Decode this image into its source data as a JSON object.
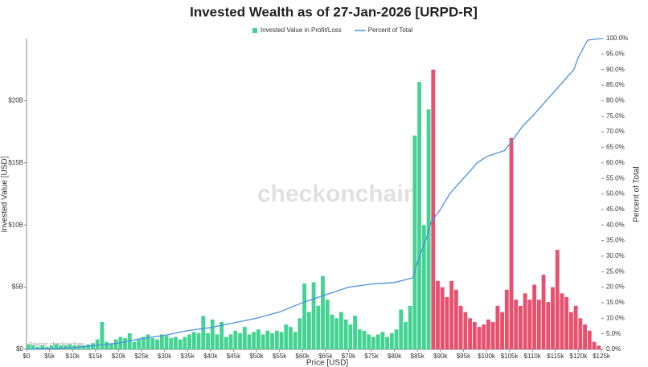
{
  "chart_data": {
    "type": "bar",
    "title": "Invested Wealth as of 27-Jan-2026 [URPD-R]",
    "x_label": "Price [USD]",
    "y_label": "Invested Value [USD]",
    "y2_label": "Percent of Total",
    "watermark": "checkonchain",
    "source": "Source: checkonchain",
    "xlim": [
      0,
      125000
    ],
    "xticks": [
      {
        "value": 0,
        "label": "$0"
      },
      {
        "value": 5000,
        "label": "$5k"
      },
      {
        "value": 10000,
        "label": "$10k"
      },
      {
        "value": 15000,
        "label": "$15k"
      },
      {
        "value": 20000,
        "label": "$20k"
      },
      {
        "value": 25000,
        "label": "$25k"
      },
      {
        "value": 30000,
        "label": "$30k"
      },
      {
        "value": 35000,
        "label": "$35k"
      },
      {
        "value": 40000,
        "label": "$40k"
      },
      {
        "value": 45000,
        "label": "$45k"
      },
      {
        "value": 50000,
        "label": "$50k"
      },
      {
        "value": 55000,
        "label": "$55k"
      },
      {
        "value": 60000,
        "label": "$60k"
      },
      {
        "value": 65000,
        "label": "$65k"
      },
      {
        "value": 70000,
        "label": "$70k"
      },
      {
        "value": 75000,
        "label": "$75k"
      },
      {
        "value": 80000,
        "label": "$80k"
      },
      {
        "value": 85000,
        "label": "$85k"
      },
      {
        "value": 90000,
        "label": "$90k"
      },
      {
        "value": 95000,
        "label": "$95k"
      },
      {
        "value": 100000,
        "label": "$100k"
      },
      {
        "value": 105000,
        "label": "$105k"
      },
      {
        "value": 110000,
        "label": "$110k"
      },
      {
        "value": 115000,
        "label": "$115k"
      },
      {
        "value": 120000,
        "label": "$120k"
      },
      {
        "value": 125000,
        "label": "$125k"
      }
    ],
    "ylim": [
      0,
      25
    ],
    "yticks": [
      {
        "value": 0,
        "label": "$0"
      },
      {
        "value": 5,
        "label": "$5B"
      },
      {
        "value": 10,
        "label": "$10B"
      },
      {
        "value": 15,
        "label": "$15B"
      },
      {
        "value": 20,
        "label": "$20B"
      }
    ],
    "y2lim": [
      0,
      100
    ],
    "y2ticks": [
      {
        "value": 0,
        "label": "0.0%"
      },
      {
        "value": 5,
        "label": "5.0%"
      },
      {
        "value": 10,
        "label": "10.0%"
      },
      {
        "value": 15,
        "label": "15.0%"
      },
      {
        "value": 20,
        "label": "20.0%"
      },
      {
        "value": 25,
        "label": "25.0%"
      },
      {
        "value": 30,
        "label": "30.0%"
      },
      {
        "value": 35,
        "label": "35.0%"
      },
      {
        "value": 40,
        "label": "40.0%"
      },
      {
        "value": 45,
        "label": "45.0%"
      },
      {
        "value": 50,
        "label": "50.0%"
      },
      {
        "value": 55,
        "label": "55.0%"
      },
      {
        "value": 60,
        "label": "60.0%"
      },
      {
        "value": 65,
        "label": "65.0%"
      },
      {
        "value": 70,
        "label": "70.0%"
      },
      {
        "value": 75,
        "label": "75.0%"
      },
      {
        "value": 80,
        "label": "80.0%"
      },
      {
        "value": 85,
        "label": "85.0%"
      },
      {
        "value": 90,
        "label": "90.0%"
      },
      {
        "value": 95,
        "label": "95.0%"
      },
      {
        "value": 100,
        "label": "100.0%"
      }
    ],
    "series": [
      {
        "name": "Invested Value in Profit/Loss",
        "type": "bar",
        "color": "#45d393",
        "x": [
          0,
          1000,
          2000,
          3000,
          4000,
          5000,
          6000,
          7000,
          8000,
          9000,
          10000,
          11000,
          12000,
          13000,
          14000,
          15000,
          16000,
          17000,
          18000,
          19000,
          20000,
          21000,
          22000,
          23000,
          24000,
          25000,
          26000,
          27000,
          28000,
          29000,
          30000,
          31000,
          32000,
          33000,
          34000,
          35000,
          36000,
          37000,
          38000,
          39000,
          40000,
          41000,
          42000,
          43000,
          44000,
          45000,
          46000,
          47000,
          48000,
          49000,
          50000,
          51000,
          52000,
          53000,
          54000,
          55000,
          56000,
          57000,
          58000,
          59000,
          60000,
          61000,
          62000,
          63000,
          64000,
          65000,
          66000,
          67000,
          68000,
          69000,
          70000,
          71000,
          72000,
          73000,
          74000,
          75000,
          76000,
          77000,
          78000,
          79000,
          80000,
          81000,
          82000,
          83000,
          84000,
          85000,
          86000,
          87000
        ],
        "values": [
          0.4,
          0.3,
          0.2,
          0.3,
          0.2,
          0.3,
          0.4,
          0.3,
          0.3,
          0.4,
          0.3,
          0.3,
          0.3,
          0.4,
          0.5,
          0.8,
          2.2,
          0.6,
          0.5,
          0.8,
          1.0,
          0.9,
          1.3,
          0.6,
          0.8,
          1.0,
          1.2,
          0.9,
          0.8,
          1.2,
          1.1,
          0.9,
          1.0,
          0.8,
          1.0,
          1.2,
          1.4,
          1.3,
          2.7,
          1.3,
          2.4,
          1.2,
          2.2,
          1.0,
          1.2,
          1.5,
          1.3,
          1.8,
          1.2,
          1.4,
          1.6,
          1.2,
          1.5,
          1.3,
          1.5,
          1.4,
          2.0,
          1.8,
          1.4,
          2.5,
          5.3,
          3.0,
          5.4,
          3.5,
          5.9,
          4.0,
          2.8,
          2.5,
          3.0,
          2.4,
          2.0,
          2.7,
          1.6,
          1.5,
          1.2,
          1.0,
          1.2,
          1.4,
          1.0,
          1.3,
          1.6,
          3.2,
          2.2,
          3.5,
          17.2,
          21.5,
          10.0,
          19.3
        ]
      },
      {
        "type": "bar",
        "color": "#e8506e",
        "x": [
          88000,
          89000,
          90000,
          91000,
          92000,
          93000,
          94000,
          95000,
          96000,
          97000,
          98000,
          99000,
          100000,
          101000,
          102000,
          103000,
          104000,
          105000,
          106000,
          107000,
          108000,
          109000,
          110000,
          111000,
          112000,
          113000,
          114000,
          115000,
          116000,
          117000,
          118000,
          119000,
          120000,
          121000,
          122000,
          123000,
          124000
        ],
        "values": [
          22.5,
          5.5,
          5.0,
          4.2,
          5.5,
          4.8,
          3.5,
          3.0,
          2.5,
          2.2,
          1.8,
          2.0,
          2.4,
          2.2,
          3.5,
          3.0,
          4.8,
          17.0,
          4.0,
          3.5,
          4.5,
          4.0,
          5.2,
          4.0,
          6.0,
          3.8,
          5.0,
          8.0,
          4.5,
          4.2,
          3.0,
          3.5,
          2.5,
          2.0,
          1.5,
          0.6,
          0.3
        ]
      },
      {
        "name": "Percent of Total",
        "type": "line",
        "axis": "y2",
        "color": "#4a90e2",
        "x": [
          0,
          10000,
          20000,
          25000,
          30000,
          35000,
          40000,
          45000,
          50000,
          55000,
          60000,
          65000,
          70000,
          75000,
          80000,
          84000,
          85000,
          86000,
          87000,
          88000,
          90000,
          92000,
          95000,
          98000,
          100000,
          104000,
          106000,
          108000,
          110000,
          113000,
          116000,
          119000,
          120000,
          122000,
          125000
        ],
        "values": [
          0,
          0.5,
          2,
          3.5,
          4.5,
          6,
          7,
          8.5,
          10,
          12,
          15,
          17.5,
          20,
          21,
          21.5,
          23,
          28,
          32,
          36,
          41,
          45,
          50,
          55,
          60,
          62,
          64,
          68,
          72,
          75,
          80,
          85,
          90,
          94,
          99.5,
          100
        ]
      }
    ]
  }
}
